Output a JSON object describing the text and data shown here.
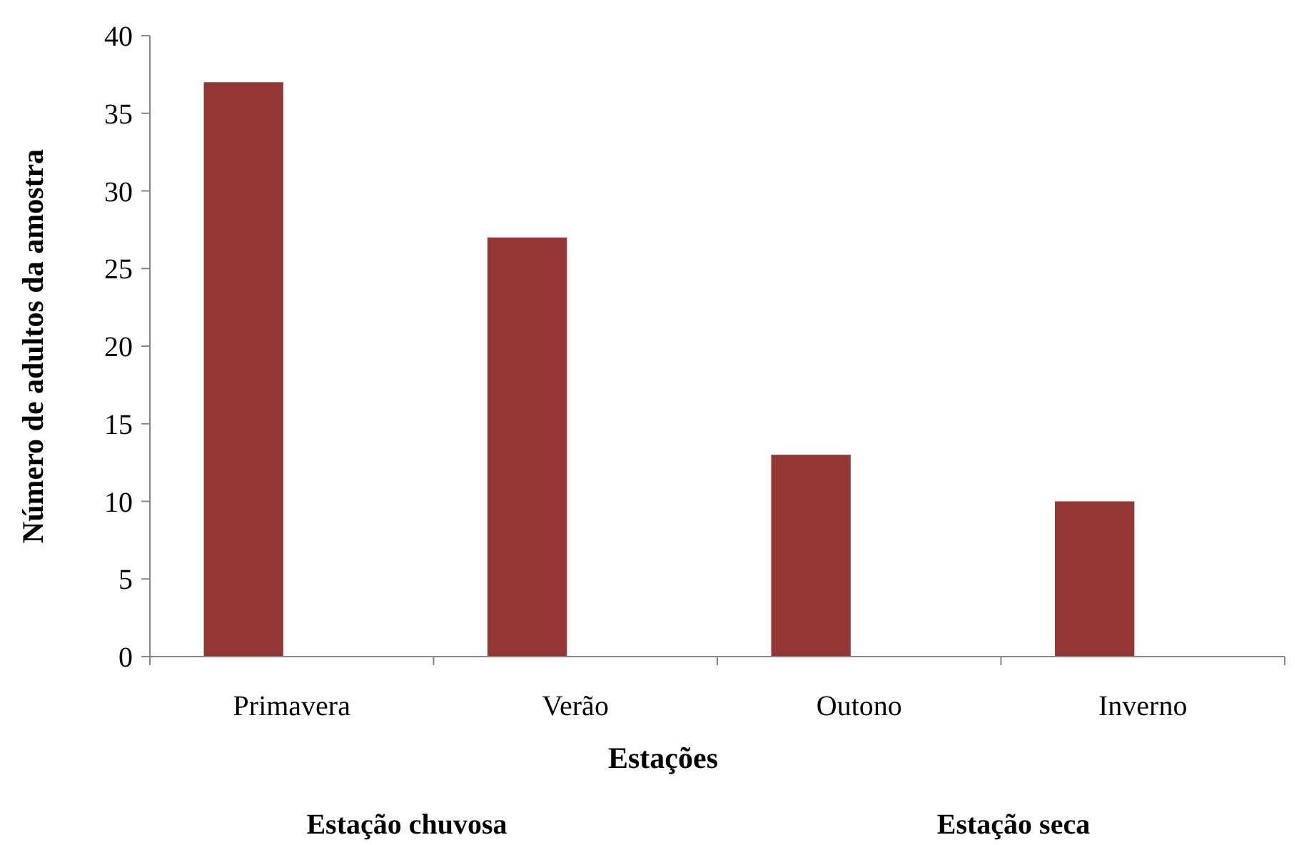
{
  "chart_data": {
    "type": "bar",
    "xlabel": "Estações",
    "ylabel": "Número de adultos da amostra",
    "categories": [
      "Primavera",
      "Verão",
      "Outono",
      "Inverno"
    ],
    "values": [
      37,
      27,
      13,
      10
    ],
    "color": "#943634",
    "ylim": [
      0,
      40
    ],
    "yticks": [
      0,
      5,
      10,
      15,
      20,
      25,
      30,
      35,
      40
    ],
    "grid": false,
    "annotations": [
      "Estação chuvosa",
      "Estação seca"
    ]
  }
}
